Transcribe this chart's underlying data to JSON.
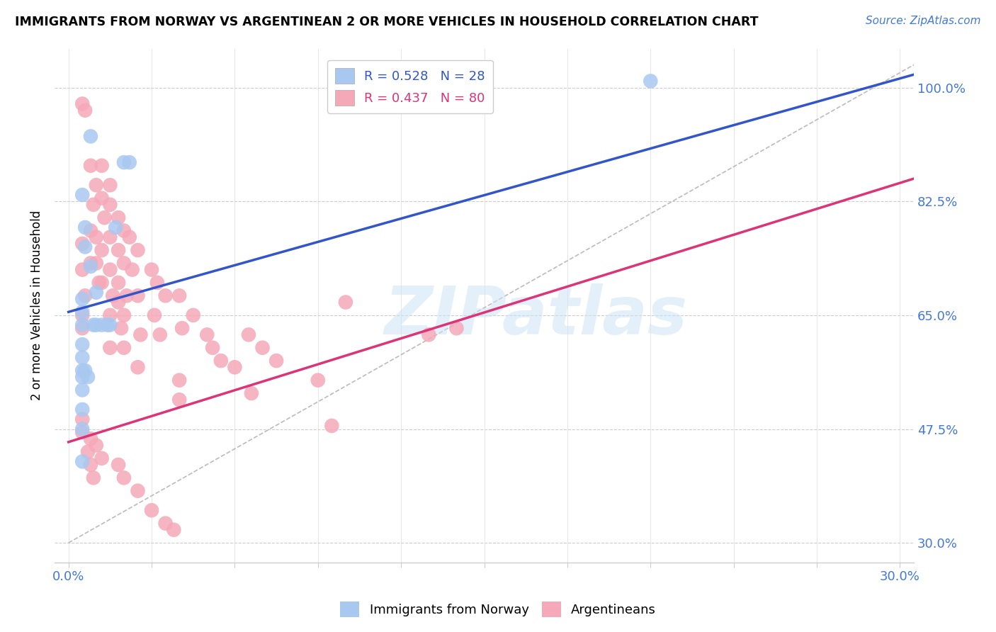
{
  "title": "IMMIGRANTS FROM NORWAY VS ARGENTINEAN 2 OR MORE VEHICLES IN HOUSEHOLD CORRELATION CHART",
  "source": "Source: ZipAtlas.com",
  "ylabel": "2 or more Vehicles in Household",
  "ytick_vals": [
    0.3,
    0.475,
    0.65,
    0.825,
    1.0
  ],
  "ytick_labels": [
    "30.0%",
    "47.5%",
    "65.0%",
    "82.5%",
    "100.0%"
  ],
  "xlim": [
    -0.005,
    0.305
  ],
  "ylim": [
    0.27,
    1.06
  ],
  "norway_color": "#a8c8f0",
  "argentina_color": "#f5a8b8",
  "norway_line_color": "#3355cc",
  "argentina_line_color": "#dd3377",
  "norway_line_x0": 0.0,
  "norway_line_y0": 0.655,
  "norway_line_x1": 0.305,
  "norway_line_y1": 1.02,
  "argentina_line_x0": 0.0,
  "argentina_line_y0": 0.455,
  "argentina_line_x1": 0.305,
  "argentina_line_y1": 0.86,
  "dash_line_x0": 0.0,
  "dash_line_y0": 0.3,
  "dash_line_x1": 0.305,
  "dash_line_y1": 1.035,
  "norway_x": [
    0.008,
    0.02,
    0.022,
    0.005,
    0.006,
    0.006,
    0.008,
    0.005,
    0.005,
    0.005,
    0.009,
    0.01,
    0.012,
    0.014,
    0.015,
    0.005,
    0.005,
    0.005,
    0.006,
    0.005,
    0.007,
    0.01,
    0.005,
    0.005,
    0.005,
    0.21,
    0.005,
    0.017
  ],
  "norway_y": [
    0.925,
    0.885,
    0.885,
    0.835,
    0.785,
    0.755,
    0.725,
    0.675,
    0.655,
    0.635,
    0.635,
    0.635,
    0.635,
    0.635,
    0.635,
    0.605,
    0.585,
    0.565,
    0.565,
    0.555,
    0.555,
    0.685,
    0.535,
    0.505,
    0.425,
    1.01,
    0.475,
    0.785
  ],
  "argentina_x": [
    0.005,
    0.006,
    0.005,
    0.005,
    0.006,
    0.005,
    0.005,
    0.008,
    0.009,
    0.008,
    0.008,
    0.01,
    0.01,
    0.01,
    0.011,
    0.012,
    0.012,
    0.013,
    0.012,
    0.012,
    0.015,
    0.015,
    0.015,
    0.015,
    0.016,
    0.015,
    0.015,
    0.018,
    0.018,
    0.018,
    0.018,
    0.019,
    0.02,
    0.02,
    0.021,
    0.02,
    0.02,
    0.022,
    0.023,
    0.025,
    0.025,
    0.026,
    0.025,
    0.03,
    0.031,
    0.032,
    0.033,
    0.035,
    0.04,
    0.041,
    0.04,
    0.04,
    0.045,
    0.05,
    0.052,
    0.055,
    0.06,
    0.065,
    0.066,
    0.07,
    0.075,
    0.09,
    0.095,
    0.1,
    0.13,
    0.14,
    0.005,
    0.008,
    0.01,
    0.012,
    0.018,
    0.02,
    0.025,
    0.03,
    0.035,
    0.038,
    0.005,
    0.007,
    0.008,
    0.009
  ],
  "argentina_y": [
    0.975,
    0.965,
    0.76,
    0.72,
    0.68,
    0.65,
    0.63,
    0.88,
    0.82,
    0.78,
    0.73,
    0.85,
    0.77,
    0.73,
    0.7,
    0.88,
    0.83,
    0.8,
    0.75,
    0.7,
    0.85,
    0.82,
    0.77,
    0.72,
    0.68,
    0.65,
    0.6,
    0.8,
    0.75,
    0.7,
    0.67,
    0.63,
    0.78,
    0.73,
    0.68,
    0.65,
    0.6,
    0.77,
    0.72,
    0.75,
    0.68,
    0.62,
    0.57,
    0.72,
    0.65,
    0.7,
    0.62,
    0.68,
    0.68,
    0.63,
    0.55,
    0.52,
    0.65,
    0.62,
    0.6,
    0.58,
    0.57,
    0.62,
    0.53,
    0.6,
    0.58,
    0.55,
    0.48,
    0.67,
    0.62,
    0.63,
    0.47,
    0.46,
    0.45,
    0.43,
    0.42,
    0.4,
    0.38,
    0.35,
    0.33,
    0.32,
    0.49,
    0.44,
    0.42,
    0.4
  ],
  "watermark_text": "ZIPatlas",
  "legend_norway_label": "R = 0.528   N = 28",
  "legend_argentina_label": "R = 0.437   N = 80",
  "xtick_positions": [
    0.0,
    0.03,
    0.06,
    0.09,
    0.12,
    0.15,
    0.18,
    0.21,
    0.24,
    0.27,
    0.3
  ],
  "xtick_label_left": "0.0%",
  "xtick_label_right": "30.0%"
}
